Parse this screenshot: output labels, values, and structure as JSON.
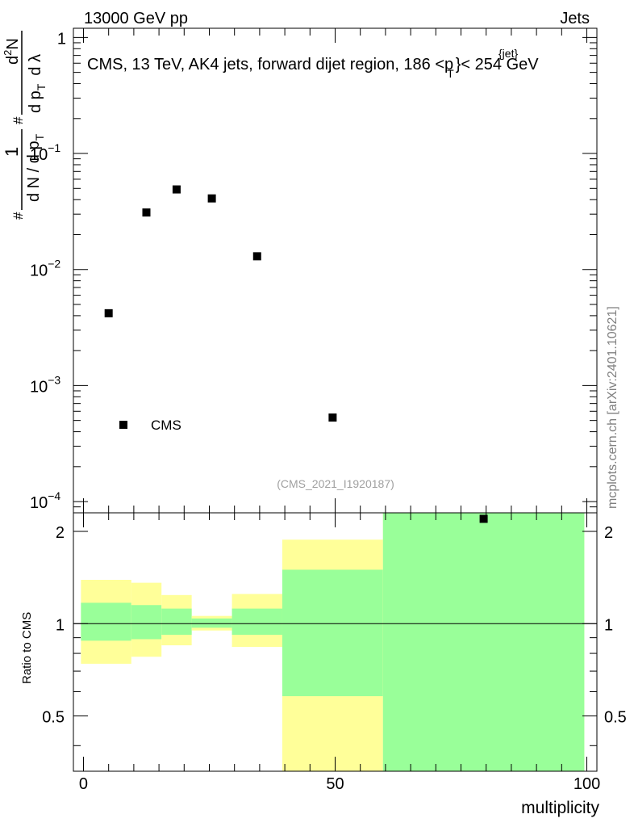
{
  "header": {
    "left": "13000 GeV pp",
    "right": "Jets"
  },
  "title": {
    "main": "CMS, 13 TeV, AK4 jets, forward dijet region, 186 <p",
    "sup": "{jet}",
    "sub": "T",
    "end": "}< 254 GeV"
  },
  "ylabel": {
    "hash1": "#",
    "one": "1",
    "den": "d N / d p",
    "den_sub": "T",
    "hash2": "#",
    "num1": "d",
    "num1_sup": "2",
    "num1_end": "N",
    "den2": "d p",
    "den2_sub": "T",
    "den2_end": "d λ"
  },
  "side_label": "mcplots.cern.ch [arXiv:2401.10621]",
  "watermark": "(CMS_2021_I1920187)",
  "legend": {
    "label": "CMS"
  },
  "upper_ticks": {
    "y": [
      {
        "v": 1,
        "label": "1"
      },
      {
        "v": 0.1,
        "base": "10",
        "exp": "−1"
      },
      {
        "v": 0.01,
        "base": "10",
        "exp": "−2"
      },
      {
        "v": 0.001,
        "base": "10",
        "exp": "−3"
      },
      {
        "v": 0.0001,
        "base": "10",
        "exp": "−4"
      }
    ]
  },
  "ratio": {
    "ylabel": "Ratio to CMS",
    "ticks": [
      {
        "v": 0.5,
        "label": "0.5"
      },
      {
        "v": 1,
        "label": "1"
      },
      {
        "v": 2,
        "label": "2"
      }
    ]
  },
  "xaxis": {
    "label": "multiplicity",
    "ticks": [
      {
        "v": 0,
        "label": "0"
      },
      {
        "v": 50,
        "label": "50"
      },
      {
        "v": 100,
        "label": "100"
      }
    ]
  },
  "chart_data": {
    "type": "scatter",
    "title": "CMS, 13 TeV, AK4 jets, forward dijet region, 186 <p_T^{jet}< 254 GeV",
    "xlabel": "multiplicity",
    "ylabel": "1/(dN/dp_T) d²N/(dp_T dλ)",
    "xlim": [
      -2,
      102
    ],
    "ylim": [
      8e-05,
      1.2
    ],
    "yscale": "log",
    "series": [
      {
        "name": "CMS",
        "x": [
          5,
          12.5,
          18.5,
          25.5,
          34.5,
          49.5,
          79.5
        ],
        "y": [
          0.0042,
          0.031,
          0.049,
          0.041,
          0.013,
          0.00053,
          7.1e-05
        ]
      }
    ],
    "ratio": {
      "ylabel": "Ratio to CMS",
      "ylim": [
        0.33,
        2.3
      ],
      "yscale": "log",
      "bands": [
        {
          "x0": -0.5,
          "x1": 9.5,
          "yellow": [
            0.74,
            1.39
          ],
          "green": [
            0.88,
            1.17
          ]
        },
        {
          "x0": 9.5,
          "x1": 15.5,
          "yellow": [
            0.78,
            1.36
          ],
          "green": [
            0.89,
            1.15
          ]
        },
        {
          "x0": 15.5,
          "x1": 21.5,
          "yellow": [
            0.85,
            1.24
          ],
          "green": [
            0.92,
            1.12
          ]
        },
        {
          "x0": 21.5,
          "x1": 29.5,
          "yellow": [
            0.95,
            1.06
          ],
          "green": [
            0.97,
            1.04
          ]
        },
        {
          "x0": 29.5,
          "x1": 39.5,
          "yellow": [
            0.84,
            1.25
          ],
          "green": [
            0.92,
            1.12
          ]
        },
        {
          "x0": 39.5,
          "x1": 59.5,
          "yellow": [
            0.33,
            1.88
          ],
          "green": [
            0.58,
            1.5
          ]
        },
        {
          "x0": 59.5,
          "x1": 99.5,
          "yellow": [
            0.33,
            2.3
          ],
          "green": [
            0.33,
            2.3
          ]
        }
      ]
    }
  }
}
